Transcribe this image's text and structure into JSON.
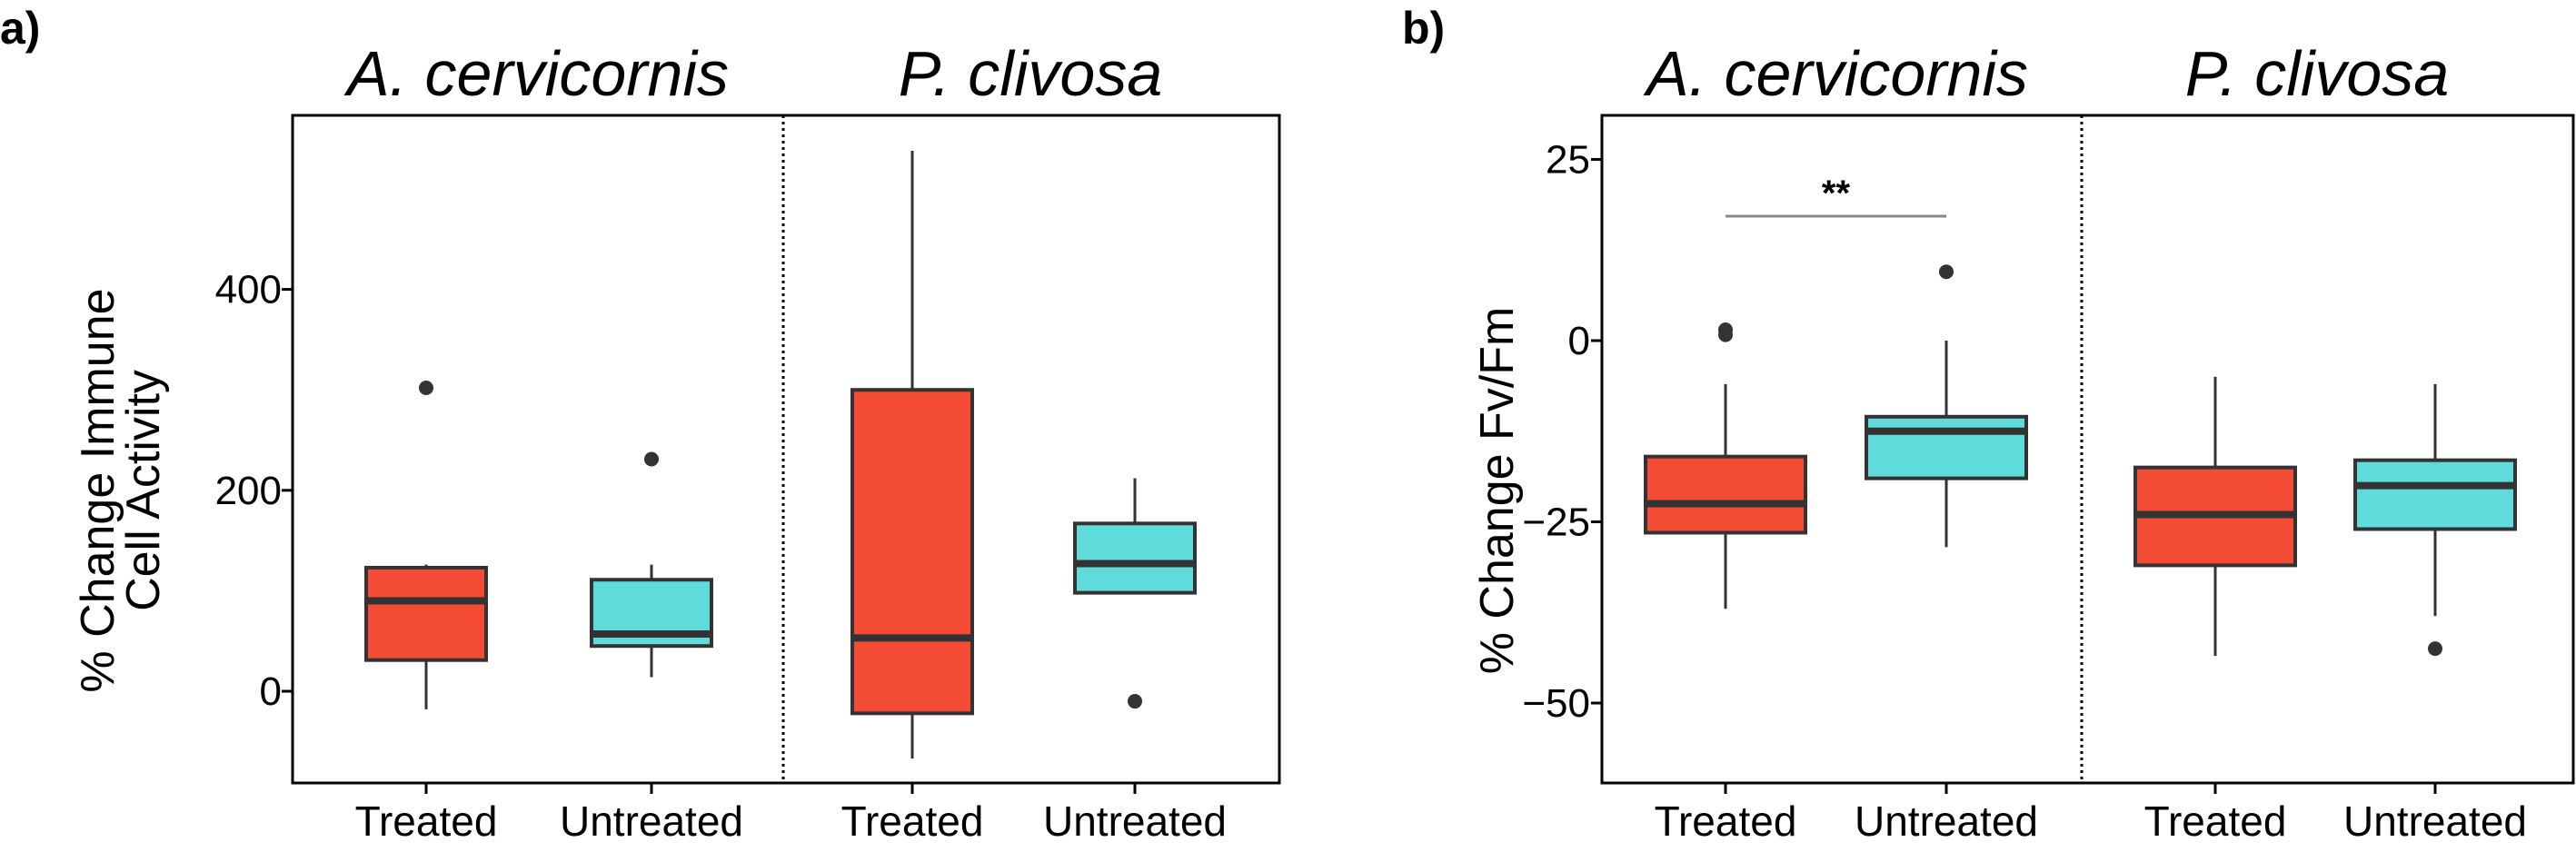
{
  "colors": {
    "Treated": "#f44b35",
    "Untreated": "#5fdbdb",
    "stroke": "#333333",
    "sigline": "#888888"
  },
  "chart_data": [
    {
      "panel": "a)",
      "type": "box",
      "ylabel": [
        "% Change Immune",
        "Cell Activity"
      ],
      "ylim": [
        -95,
        565
      ],
      "yticks": [
        "0",
        "200",
        "400"
      ],
      "grid": false,
      "facets": [
        {
          "title": "A. cervicornis",
          "boxes": [
            {
              "category": "Treated",
              "low": -18,
              "q1": 31,
              "median": 90,
              "q3": 123,
              "high": 126,
              "outliers": [
                302
              ]
            },
            {
              "category": "Untreated",
              "low": 14,
              "q1": 45,
              "median": 57,
              "q3": 111,
              "high": 126,
              "outliers": [
                231
              ]
            }
          ]
        },
        {
          "title": "P. clivosa",
          "boxes": [
            {
              "category": "Treated",
              "low": -67,
              "q1": -22,
              "median": 53,
              "q3": 300,
              "high": 538,
              "outliers": []
            },
            {
              "category": "Untreated",
              "low": 98,
              "q1": 98,
              "median": 127,
              "q3": 167,
              "high": 212,
              "outliers": [
                -10
              ]
            }
          ]
        }
      ]
    },
    {
      "panel": "b)",
      "type": "box",
      "ylabel": [
        "% Change Fv/Fm"
      ],
      "ylim": [
        -61,
        31
      ],
      "yticks": [
        "25",
        "0",
        "−25",
        "−50"
      ],
      "grid": false,
      "facets": [
        {
          "title": "A. cervicornis",
          "boxes": [
            {
              "category": "Treated",
              "low": -37,
              "q1": -26.5,
              "median": -22.5,
              "q3": -16,
              "high": -6,
              "outliers": [
                1.5,
                0.8
              ]
            },
            {
              "category": "Untreated",
              "low": -28.5,
              "q1": -19,
              "median": -12.5,
              "q3": -10.5,
              "high": 0,
              "outliers": [
                9.5
              ]
            }
          ],
          "annotation": "**"
        },
        {
          "title": "P. clivosa",
          "boxes": [
            {
              "category": "Treated",
              "low": -43.5,
              "q1": -31,
              "median": -24,
              "q3": -17.5,
              "high": -5,
              "outliers": []
            },
            {
              "category": "Untreated",
              "low": -38,
              "q1": -26,
              "median": -20,
              "q3": -16.5,
              "high": -6,
              "outliers": [
                -42.5
              ]
            }
          ]
        }
      ]
    }
  ]
}
